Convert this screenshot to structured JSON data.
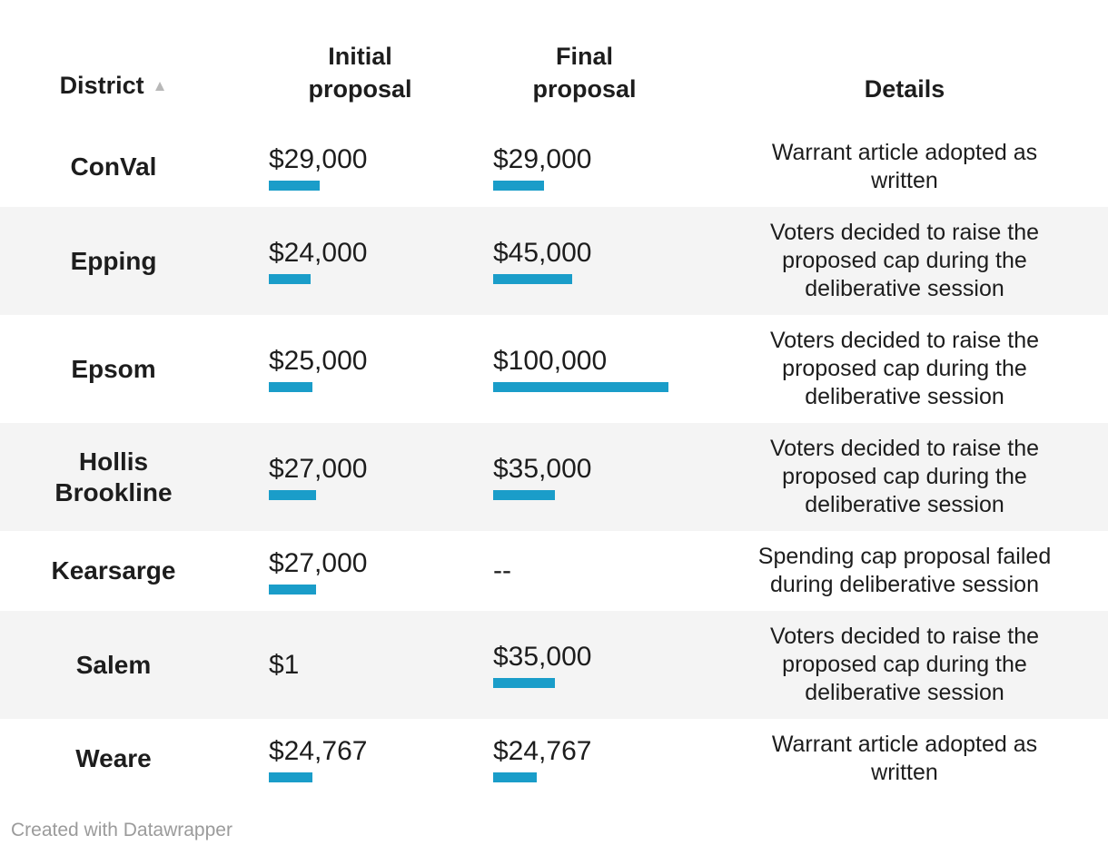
{
  "table": {
    "sort_indicator": "▲",
    "columns": [
      {
        "label": "District"
      },
      {
        "label": "Initial proposal"
      },
      {
        "label": "Final proposal"
      },
      {
        "label": "Details"
      }
    ],
    "rows": [
      {
        "district": "ConVal",
        "initial": {
          "display": "$29,000",
          "value": 29000
        },
        "final": {
          "display": "$29,000",
          "value": 29000
        },
        "details": "Warrant article adopted as written"
      },
      {
        "district": "Epping",
        "initial": {
          "display": "$24,000",
          "value": 24000
        },
        "final": {
          "display": "$45,000",
          "value": 45000
        },
        "details": "Voters decided to raise the proposed cap during the deliberative session"
      },
      {
        "district": "Epsom",
        "initial": {
          "display": "$25,000",
          "value": 25000
        },
        "final": {
          "display": "$100,000",
          "value": 100000
        },
        "details": "Voters decided to raise the proposed cap during the deliberative session"
      },
      {
        "district": "Hollis Brookline",
        "initial": {
          "display": "$27,000",
          "value": 27000
        },
        "final": {
          "display": "$35,000",
          "value": 35000
        },
        "details": "Voters decided to raise the proposed cap during the deliberative session"
      },
      {
        "district": "Kearsarge",
        "initial": {
          "display": "$27,000",
          "value": 27000
        },
        "final": {
          "display": "--",
          "value": null
        },
        "details": "Spending cap proposal failed during deliberative session"
      },
      {
        "district": "Salem",
        "initial": {
          "display": "$1",
          "value": 1
        },
        "final": {
          "display": "$35,000",
          "value": 35000
        },
        "details": "Voters decided to raise the proposed cap during the deliberative session"
      },
      {
        "district": "Weare",
        "initial": {
          "display": "$24,767",
          "value": 24767
        },
        "final": {
          "display": "$24,767",
          "value": 24767
        },
        "details": "Warrant article adopted as written"
      }
    ],
    "max_value": 100000,
    "colors": {
      "bar": "#1a9dc9",
      "alt_row_bg": "#f4f4f4",
      "sort_icon": "#b8b8b8",
      "text": "#1d1d1d",
      "footer_text": "#9b9b9b"
    }
  },
  "footer": {
    "credit": "Created with Datawrapper"
  },
  "chart_data": {
    "type": "table",
    "title": "",
    "categories": [
      "ConVal",
      "Epping",
      "Epsom",
      "Hollis Brookline",
      "Kearsarge",
      "Salem",
      "Weare"
    ],
    "series": [
      {
        "name": "Initial proposal",
        "values": [
          29000,
          24000,
          25000,
          27000,
          27000,
          1,
          24767
        ]
      },
      {
        "name": "Final proposal",
        "values": [
          29000,
          45000,
          100000,
          35000,
          null,
          35000,
          24767
        ]
      }
    ],
    "details": [
      "Warrant article adopted as written",
      "Voters decided to raise the proposed cap during the deliberative session",
      "Voters decided to raise the proposed cap during the deliberative session",
      "Voters decided to raise the proposed cap during the deliberative session",
      "Spending cap proposal failed during deliberative session",
      "Voters decided to raise the proposed cap during the deliberative session",
      "Warrant article adopted as written"
    ],
    "bar_scale_max": 100000,
    "legend_position": "none",
    "grid": false
  }
}
